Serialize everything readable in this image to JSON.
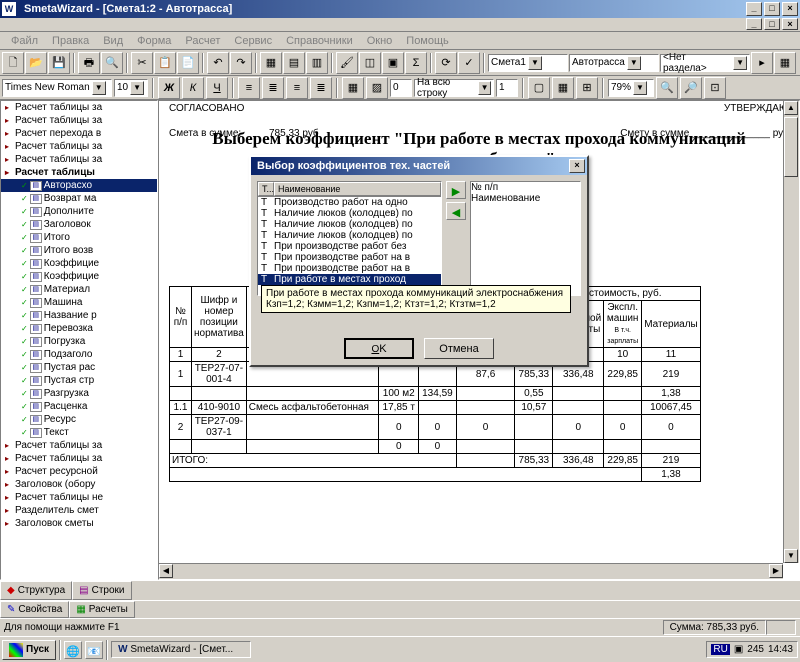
{
  "app": {
    "title": "SmetaWizard - [Смета1:2 - Автотрасса]"
  },
  "menu": [
    "Файл",
    "Правка",
    "Вид",
    "Форма",
    "Расчет",
    "Сервис",
    "Справочники",
    "Окно",
    "Помощь"
  ],
  "font_combo": "Times New Roman",
  "size_combo": "10",
  "ruler_combo": "На всю строку",
  "num1": "0",
  "num2": "1",
  "zoom": "79%",
  "doc_combo1": "Смета1",
  "doc_combo2": "Автотрасса",
  "doc_combo3": "<Нет раздела>",
  "tree": [
    {
      "t": "Расчет таблицы за",
      "lv": 0
    },
    {
      "t": "Расчет таблицы за",
      "lv": 0
    },
    {
      "t": "Расчет перехода в",
      "lv": 0
    },
    {
      "t": "Расчет таблицы за",
      "lv": 0
    },
    {
      "t": "Расчет таблицы за",
      "lv": 0
    },
    {
      "t": "Расчет таблицы",
      "lv": 0,
      "b": true
    },
    {
      "t": "Авторасхо",
      "lv": 1,
      "sel": true
    },
    {
      "t": "Возврат ма",
      "lv": 1
    },
    {
      "t": "Дополните",
      "lv": 1
    },
    {
      "t": "Заголовок",
      "lv": 1
    },
    {
      "t": "Итого",
      "lv": 1
    },
    {
      "t": "Итого возв",
      "lv": 1
    },
    {
      "t": "Коэффицие",
      "lv": 1
    },
    {
      "t": "Коэффицие",
      "lv": 1
    },
    {
      "t": "Материал",
      "lv": 1
    },
    {
      "t": "Машина",
      "lv": 1
    },
    {
      "t": "Название р",
      "lv": 1
    },
    {
      "t": "Перевозка",
      "lv": 1
    },
    {
      "t": "Погрузка",
      "lv": 1
    },
    {
      "t": "Подзаголо",
      "lv": 1
    },
    {
      "t": "Пустая рас",
      "lv": 1
    },
    {
      "t": "Пустая стр",
      "lv": 1
    },
    {
      "t": "Разгрузка",
      "lv": 1
    },
    {
      "t": "Расценка",
      "lv": 1
    },
    {
      "t": "Ресурс",
      "lv": 1
    },
    {
      "t": "Текст",
      "lv": 1
    },
    {
      "t": "Расчет таблицы за",
      "lv": 0
    },
    {
      "t": "Расчет таблицы за",
      "lv": 0
    },
    {
      "t": "Расчет ресурсной",
      "lv": 0
    },
    {
      "t": "Заголовок (обору",
      "lv": 0
    },
    {
      "t": "Расчет таблицы не",
      "lv": 0
    },
    {
      "t": "Разделитель смет",
      "lv": 0
    },
    {
      "t": "Заголовок сметы",
      "lv": 0
    }
  ],
  "doc": {
    "approved_l": "СОГЛАСОВАНО",
    "approved_r": "УТВЕРЖДАЮ",
    "sum_label": "Смета в сумме:",
    "sum_val": "785,33 руб",
    "sum_r": "Смету в сумме ______________ руб",
    "overlay": "Выберем коэффициент \"При работе в местах прохода коммуникаций электроснабжения\""
  },
  "table": {
    "headers1": [
      "№ п/п",
      "Шифр и номер позиции норматива",
      "",
      "",
      "",
      "",
      "Материалы",
      "Всего",
      "Основной зарплаты",
      "Экспл. машин",
      "Материалы"
    ],
    "right_head": "Общая стоимость, руб.",
    "sub": "В т.ч. зарплаты",
    "nums": [
      "1",
      "2",
      "",
      "",
      "",
      "",
      "7",
      "8",
      "9",
      "10",
      "11"
    ],
    "rows": [
      [
        "1",
        "ТЕР27-07-001-4",
        "",
        "",
        "",
        "",
        "87,6",
        "785,33",
        "336,48",
        "229,85",
        "219"
      ],
      [
        "",
        "",
        "",
        "",
        "100 м2",
        "134,59",
        "",
        "0,55",
        "",
        "",
        "1,38"
      ],
      [
        "1.1",
        "410-9010",
        "Смесь асфальтобетонная",
        "",
        "17,85 т",
        "",
        "",
        "10,57",
        "",
        "",
        "10067,45"
      ],
      [
        "2",
        "ТЕР27-09-037-1",
        "",
        "",
        "0",
        "0",
        "0",
        "",
        "0",
        "0",
        "0"
      ],
      [
        "",
        "",
        "",
        "",
        "0",
        "0",
        "",
        "",
        "",
        "",
        ""
      ]
    ],
    "itogo": "ИТОГО:",
    "itogo_vals": [
      "785,33",
      "336,48",
      "229,85",
      "219"
    ],
    "itogo_sub": "1,38"
  },
  "dialog": {
    "title": "Выбор коэффициентов тех. частей",
    "col1": "Т...",
    "col2": "Наименование",
    "col3": "№ п/п",
    "col4": "Наименование",
    "items": [
      "Производство работ на одно",
      "Наличие люков (колодцев) по",
      "Наличие люков (колодцев) по",
      "Наличие люков (колодцев) по",
      "При производстве работ без",
      "При производстве работ на в",
      "При производстве работ на в",
      "При работе в местах проход"
    ],
    "tooltip": "При работе в местах прохода коммуникаций электроснабжения Кзп=1,2; Кзмм=1,2; Кзпм=1,2; Ктзт=1,2; Ктзтм=1,2",
    "ok": "OK",
    "cancel": "Отмена"
  },
  "bottom_tabs": {
    "t1": "Структура",
    "t2": "Строки",
    "t3": "Свойства",
    "t4": "Расчеты"
  },
  "status": {
    "help": "Для помощи нажмите F1",
    "sum": "Сумма: 785,33 руб."
  },
  "taskbar": {
    "start": "Пуск",
    "task": "SmetaWizard - [Смет...",
    "lang": "RU",
    "time": "14:43",
    "count": "245"
  }
}
